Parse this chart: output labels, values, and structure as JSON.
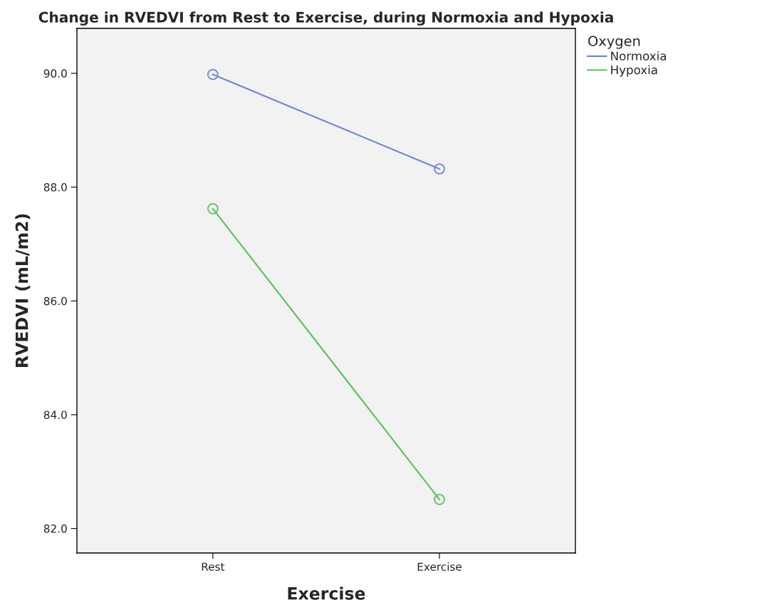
{
  "chart_data": {
    "type": "line",
    "title": "Change in RVEDVI from Rest to Exercise, during Normoxia and Hypoxia",
    "xlabel": "Exercise",
    "ylabel": "RVEDVI (mL/m2)",
    "legend_title": "Oxygen",
    "categories": [
      "Rest",
      "Exercise"
    ],
    "series": [
      {
        "name": "Normoxia",
        "color": "#7186cf",
        "values": [
          89.98,
          88.32
        ]
      },
      {
        "name": "Hypoxia",
        "color": "#5cc35c",
        "values": [
          87.62,
          82.51
        ]
      }
    ],
    "ylim": [
      81.57,
      90.79
    ],
    "yticks": [
      {
        "value": 82,
        "label": "82.0"
      },
      {
        "value": 84,
        "label": "84.0"
      },
      {
        "value": 86,
        "label": "86.0"
      },
      {
        "value": 88,
        "label": "88.0"
      },
      {
        "value": 90,
        "label": "90.0"
      }
    ],
    "marker": "circle",
    "line_style": "solid",
    "legend": "top right",
    "grid": false
  }
}
